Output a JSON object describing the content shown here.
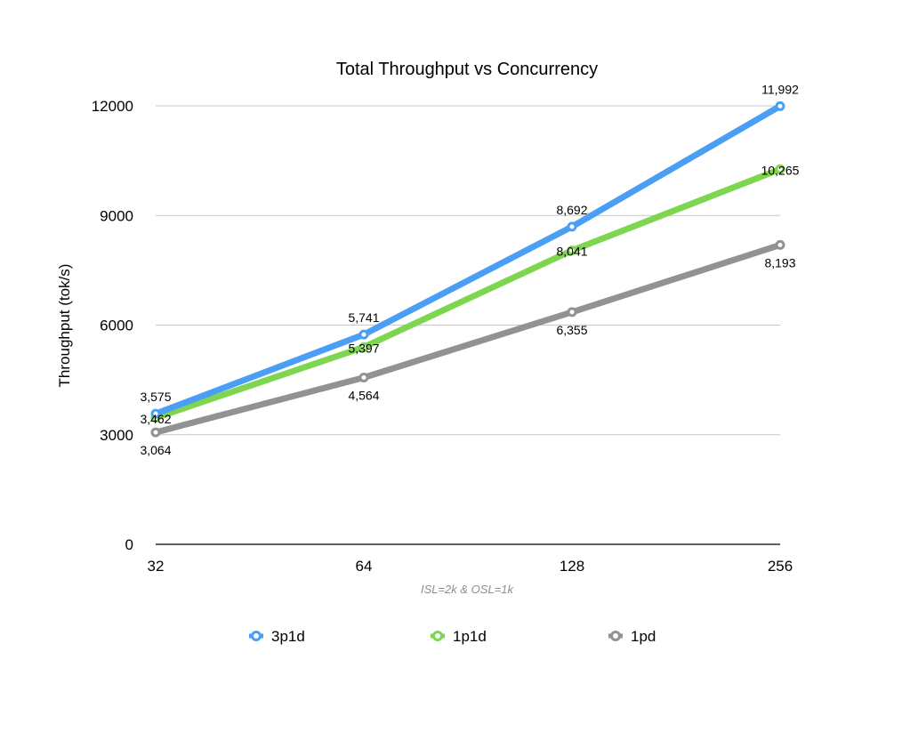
{
  "chart_data": {
    "type": "line",
    "title": "Total Throughput vs Concurrency",
    "xlabel": "ISL=2k & OSL=1k",
    "ylabel": "Throughput (tok/s)",
    "categories": [
      "32",
      "64",
      "128",
      "256"
    ],
    "ylim": [
      0,
      12000
    ],
    "yticks": [
      "0",
      "3000",
      "6000",
      "9000",
      "12000"
    ],
    "grid": true,
    "legend_position": "bottom",
    "series": [
      {
        "name": "3p1d",
        "color": "#4A9FF5",
        "values": [
          3575,
          5741,
          8692,
          11992
        ],
        "labels": [
          "3,575",
          "5,741",
          "8,692",
          "11,992"
        ],
        "label_position": "above"
      },
      {
        "name": "1p1d",
        "color": "#7ED650",
        "values": [
          3462,
          5397,
          8041,
          10265
        ],
        "labels": [
          "3,462",
          "5,397",
          "8,041",
          "10,265"
        ],
        "label_position": "center"
      },
      {
        "name": "1pd",
        "color": "#929292",
        "values": [
          3064,
          4564,
          6355,
          8193
        ],
        "labels": [
          "3,064",
          "4,564",
          "6,355",
          "8,193"
        ],
        "label_position": "below"
      }
    ]
  }
}
